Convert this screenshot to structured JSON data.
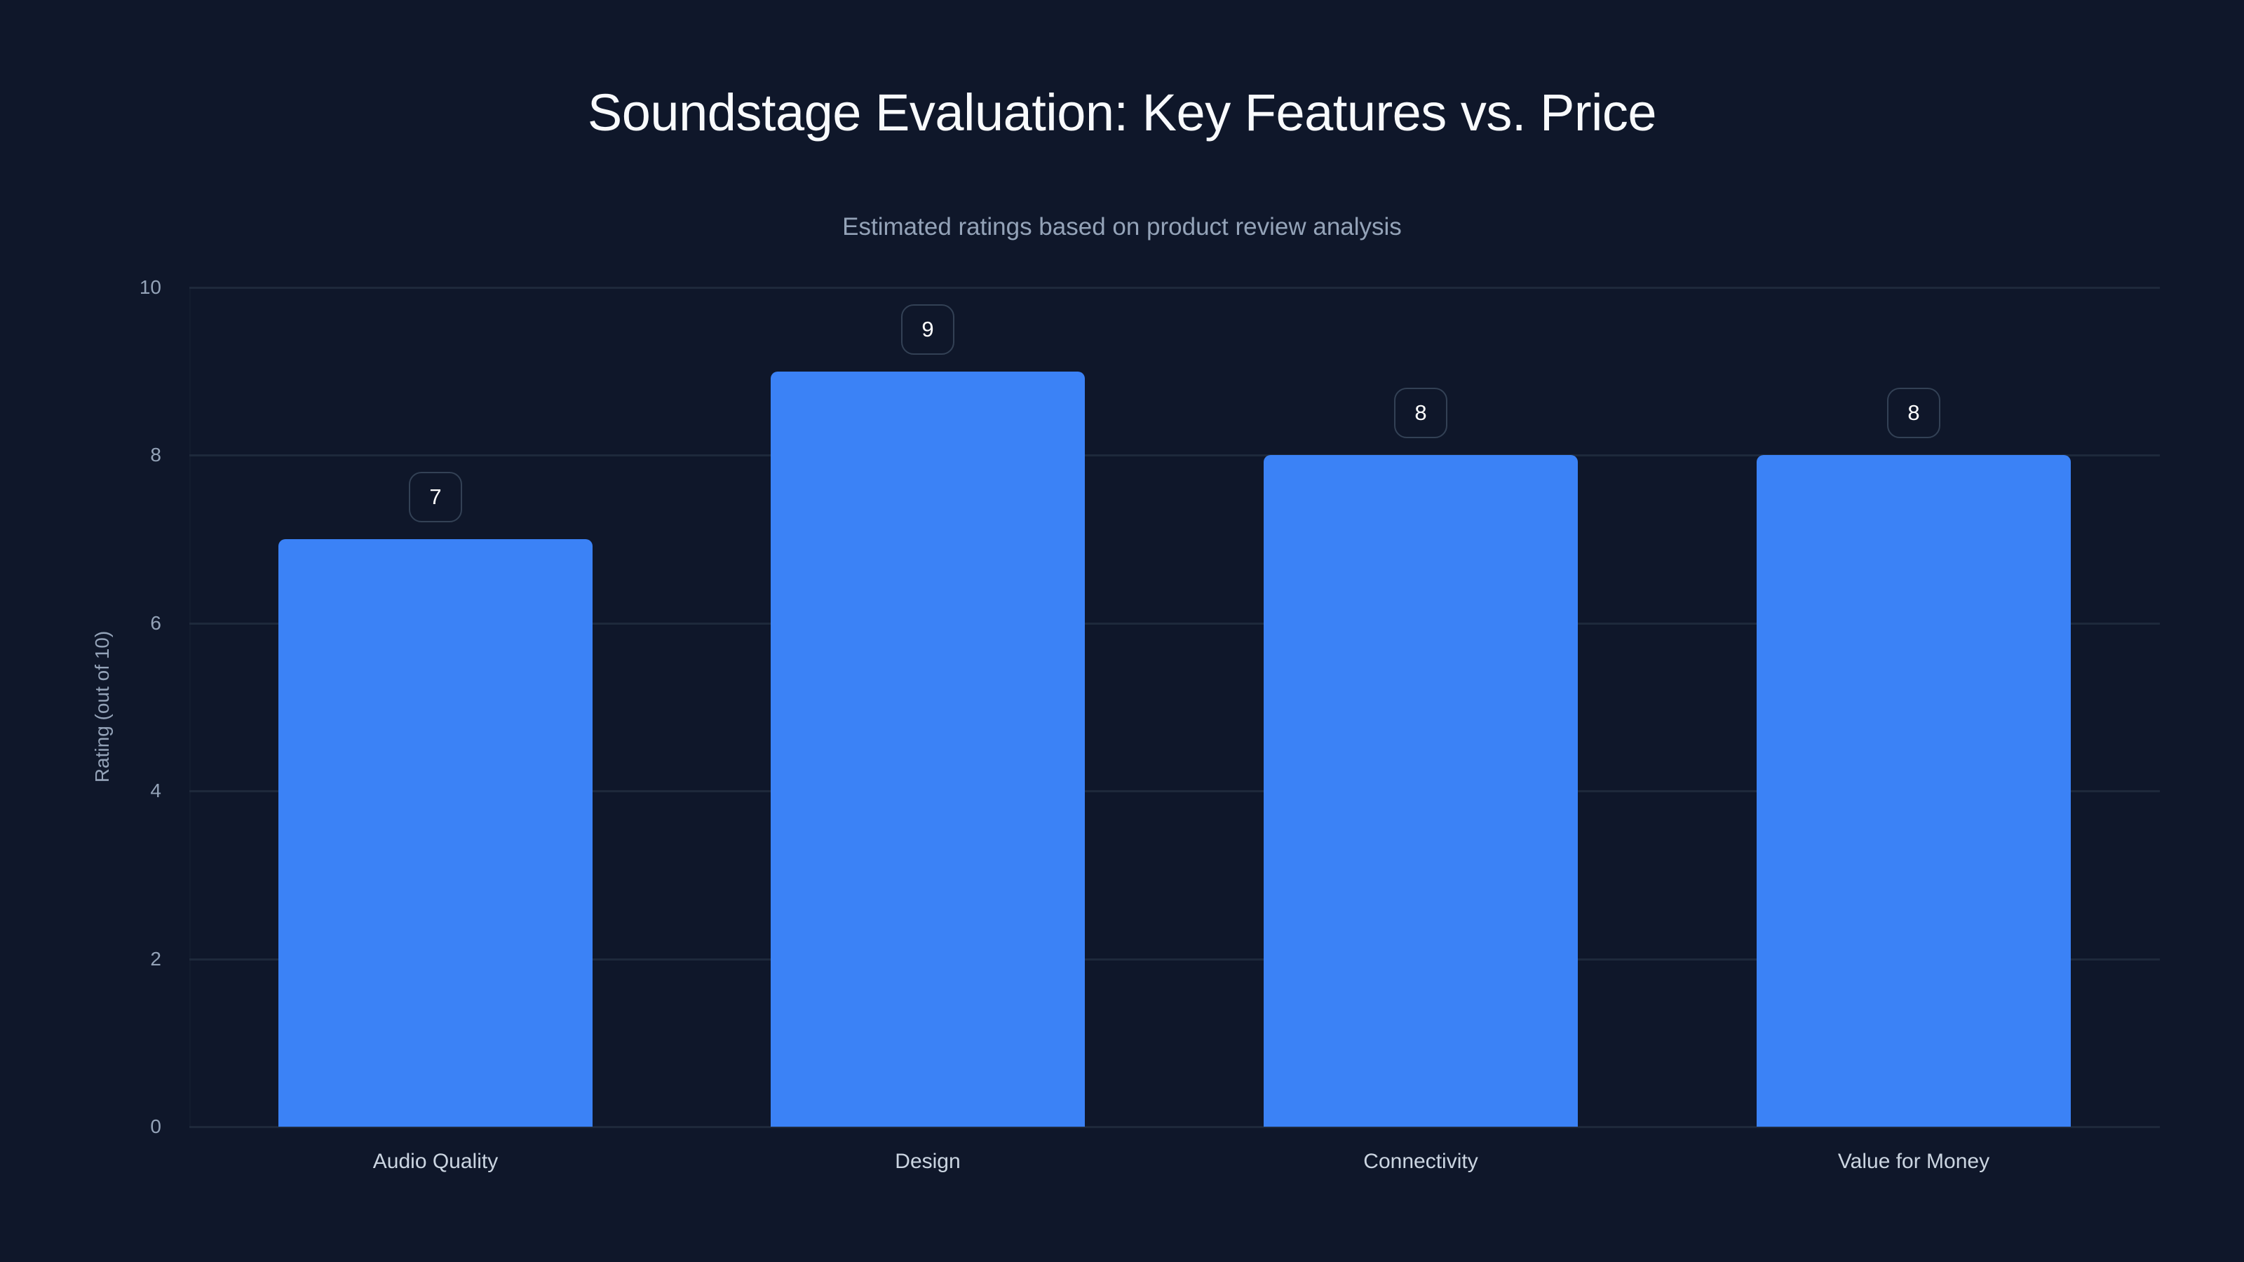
{
  "header": {
    "title": "Soundstage Evaluation: Key Features vs. Price",
    "subtitle": "Estimated ratings based on product review analysis"
  },
  "axes": {
    "y_label": "Rating (out of 10)",
    "y_ticks": [
      "0",
      "2",
      "4",
      "6",
      "8",
      "10"
    ]
  },
  "bars": [
    {
      "label": "Audio Quality",
      "value": "7"
    },
    {
      "label": "Design",
      "value": "9"
    },
    {
      "label": "Connectivity",
      "value": "8"
    },
    {
      "label": "Value for Money",
      "value": "8"
    }
  ],
  "colors": {
    "background": "#0f172a",
    "bar": "#3b82f6",
    "gridline": "#1e293b",
    "badge_border": "#334155",
    "muted_text": "#94a3b8"
  },
  "chart_data": {
    "type": "bar",
    "title": "Soundstage Evaluation: Key Features vs. Price",
    "subtitle": "Estimated ratings based on product review analysis",
    "categories": [
      "Audio Quality",
      "Design",
      "Connectivity",
      "Value for Money"
    ],
    "values": [
      7,
      9,
      8,
      8
    ],
    "xlabel": "",
    "ylabel": "Rating (out of 10)",
    "ylim": [
      0,
      10
    ],
    "yticks": [
      0,
      2,
      4,
      6,
      8,
      10
    ],
    "grid": true,
    "legend": null,
    "data_labels": true
  }
}
